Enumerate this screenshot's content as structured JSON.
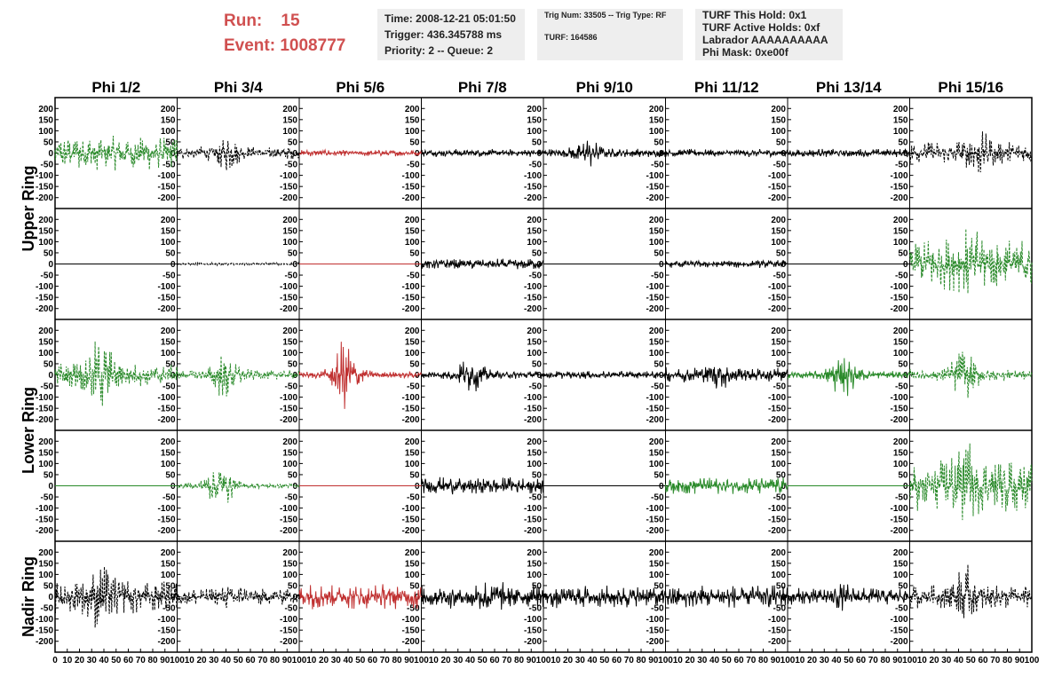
{
  "header": {
    "run_label": "Run:",
    "run_value": "15",
    "event_label": "Event:",
    "event_value": "1008777",
    "time": "Time: 2008-12-21 05:01:50",
    "trigger": "Trigger: 436.345788 ms",
    "priority": "Priority: 2 -- Queue: 2",
    "trig_num": "Trig Num: 33505 -- Trig Type: RF",
    "turf": "TURF: 164586",
    "turf_hold": "TURF This Hold: 0x1",
    "turf_active": "TURF Active Holds: 0xf",
    "labrador": "Labrador AAAAAAAAAA",
    "phi_mask": "Phi Mask: 0xe00f"
  },
  "chart_data": {
    "type": "line",
    "layout": "grid 5 rows x 8 columns of waveform panels",
    "column_titles": [
      "Phi 1/2",
      "Phi 3/4",
      "Phi 5/6",
      "Phi 7/8",
      "Phi 9/10",
      "Phi 11/12",
      "Phi 13/14",
      "Phi 15/16"
    ],
    "row_titles": [
      {
        "label": "Upper Ring",
        "rows": [
          0,
          1
        ]
      },
      {
        "label": "Lower Ring",
        "rows": [
          2,
          3
        ]
      },
      {
        "label": "Nadir Ring",
        "rows": [
          4,
          4
        ]
      }
    ],
    "ylim": [
      -225,
      225
    ],
    "y_ticks": [
      -200,
      -150,
      -100,
      -50,
      0,
      50,
      100,
      150,
      200
    ],
    "xlim": [
      0,
      100
    ],
    "x_ticks": [
      0,
      10,
      20,
      30,
      40,
      50,
      60,
      70,
      80,
      90,
      100
    ],
    "x_tick_labels": [
      "0",
      "10",
      "20",
      "30",
      "40",
      "50",
      "60",
      "70",
      "80",
      "90",
      "100"
    ],
    "grid": false,
    "colors": {
      "default": "#000000",
      "green": "#2a8a2a",
      "red": "#c03030"
    },
    "panels": [
      [
        {
          "color": "green",
          "dashed": true,
          "amp": 80,
          "env": "uniform",
          "center": 50,
          "burst_amp": 0
        },
        {
          "color": "default",
          "dashed": true,
          "amp": 30,
          "env": "uniform",
          "center": 40,
          "burst_amp": 55
        },
        {
          "color": "red",
          "dashed": false,
          "amp": 15,
          "env": "uniform",
          "center": 50,
          "burst_amp": 0
        },
        {
          "color": "default",
          "dashed": false,
          "amp": 18,
          "env": "uniform",
          "center": 50,
          "burst_amp": 0
        },
        {
          "color": "default",
          "dashed": false,
          "amp": 20,
          "env": "uniform",
          "center": 35,
          "burst_amp": 60
        },
        {
          "color": "default",
          "dashed": false,
          "amp": 18,
          "env": "uniform",
          "center": 50,
          "burst_amp": 0
        },
        {
          "color": "default",
          "dashed": false,
          "amp": 20,
          "env": "uniform",
          "center": 50,
          "burst_amp": 0
        },
        {
          "color": "default",
          "dashed": true,
          "amp": 55,
          "env": "uniform",
          "center": 55,
          "burst_amp": 60
        }
      ],
      [
        {
          "color": "default",
          "dashed": false,
          "amp": 0,
          "env": "flat",
          "center": 50,
          "burst_amp": 0
        },
        {
          "color": "default",
          "dashed": true,
          "amp": 6,
          "env": "uniform",
          "center": 50,
          "burst_amp": 0
        },
        {
          "color": "red",
          "dashed": false,
          "amp": 0,
          "env": "flat",
          "center": 50,
          "burst_amp": 0
        },
        {
          "color": "default",
          "dashed": false,
          "amp": 25,
          "env": "uniform",
          "center": 50,
          "burst_amp": 0
        },
        {
          "color": "default",
          "dashed": false,
          "amp": 0,
          "env": "flat",
          "center": 50,
          "burst_amp": 0
        },
        {
          "color": "default",
          "dashed": false,
          "amp": 18,
          "env": "uniform",
          "center": 50,
          "burst_amp": 0
        },
        {
          "color": "default",
          "dashed": false,
          "amp": 0,
          "env": "flat",
          "center": 50,
          "burst_amp": 0
        },
        {
          "color": "green",
          "dashed": true,
          "amp": 120,
          "env": "uniform",
          "center": 50,
          "burst_amp": 90
        }
      ],
      [
        {
          "color": "green",
          "dashed": true,
          "amp": 90,
          "env": "burst",
          "center": 38,
          "burst_amp": 100
        },
        {
          "color": "green",
          "dashed": true,
          "amp": 35,
          "env": "burst",
          "center": 40,
          "burst_amp": 90
        },
        {
          "color": "red",
          "dashed": false,
          "amp": 25,
          "env": "burst",
          "center": 38,
          "burst_amp": 150
        },
        {
          "color": "default",
          "dashed": false,
          "amp": 30,
          "env": "burst",
          "center": 40,
          "burst_amp": 60
        },
        {
          "color": "default",
          "dashed": false,
          "amp": 18,
          "env": "uniform",
          "center": 50,
          "burst_amp": 0
        },
        {
          "color": "default",
          "dashed": false,
          "amp": 35,
          "env": "uniform",
          "center": 45,
          "burst_amp": 40
        },
        {
          "color": "green",
          "dashed": false,
          "amp": 30,
          "env": "burst",
          "center": 45,
          "burst_amp": 80
        },
        {
          "color": "green",
          "dashed": true,
          "amp": 45,
          "env": "burst",
          "center": 45,
          "burst_amp": 80
        }
      ],
      [
        {
          "color": "green",
          "dashed": false,
          "amp": 0,
          "env": "flat",
          "center": 50,
          "burst_amp": 0
        },
        {
          "color": "green",
          "dashed": true,
          "amp": 20,
          "env": "burst",
          "center": 35,
          "burst_amp": 110
        },
        {
          "color": "red",
          "dashed": false,
          "amp": 0,
          "env": "flat",
          "center": 50,
          "burst_amp": 0
        },
        {
          "color": "default",
          "dashed": false,
          "amp": 40,
          "env": "uniform",
          "center": 50,
          "burst_amp": 0
        },
        {
          "color": "default",
          "dashed": false,
          "amp": 0,
          "env": "flat",
          "center": 50,
          "burst_amp": 0
        },
        {
          "color": "green",
          "dashed": false,
          "amp": 40,
          "env": "uniform",
          "center": 50,
          "burst_amp": 0
        },
        {
          "color": "green",
          "dashed": false,
          "amp": 0,
          "env": "flat",
          "center": 50,
          "burst_amp": 0
        },
        {
          "color": "green",
          "dashed": true,
          "amp": 120,
          "env": "uniform",
          "center": 45,
          "burst_amp": 90
        }
      ],
      [
        {
          "color": "default",
          "dashed": true,
          "amp": 80,
          "env": "uniform",
          "center": 38,
          "burst_amp": 90
        },
        {
          "color": "default",
          "dashed": true,
          "amp": 40,
          "env": "uniform",
          "center": 45,
          "burst_amp": 30
        },
        {
          "color": "red",
          "dashed": false,
          "amp": 60,
          "env": "uniform",
          "center": 50,
          "burst_amp": 0
        },
        {
          "color": "default",
          "dashed": false,
          "amp": 55,
          "env": "uniform",
          "center": 55,
          "burst_amp": 60
        },
        {
          "color": "default",
          "dashed": false,
          "amp": 55,
          "env": "uniform",
          "center": 50,
          "burst_amp": 0
        },
        {
          "color": "default",
          "dashed": false,
          "amp": 55,
          "env": "uniform",
          "center": 50,
          "burst_amp": 0
        },
        {
          "color": "default",
          "dashed": false,
          "amp": 40,
          "env": "uniform",
          "center": 45,
          "burst_amp": 25
        },
        {
          "color": "default",
          "dashed": true,
          "amp": 55,
          "env": "uniform",
          "center": 45,
          "burst_amp": 100
        }
      ]
    ]
  }
}
